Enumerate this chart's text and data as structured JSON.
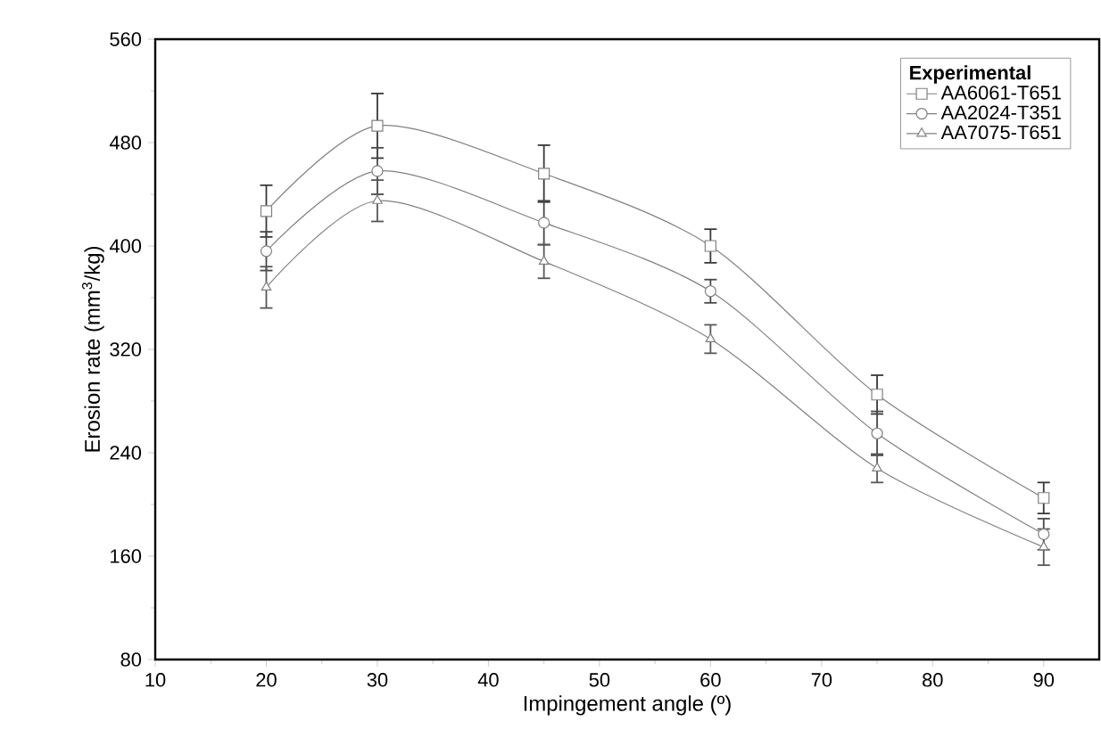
{
  "chart_data": {
    "type": "line",
    "xlabel": "Impingement angle (º)",
    "ylabel": "Erosion rate (mm$^{3}$/kg)",
    "legend_title": "Experimental",
    "x": [
      20,
      30,
      45,
      60,
      75,
      90
    ],
    "series": [
      {
        "name": "AA6061-T651",
        "color": "#808080",
        "marker": "square",
        "values": [
          427,
          493,
          456,
          400,
          285,
          205
        ],
        "errors": [
          20,
          25,
          22,
          13,
          15,
          12
        ]
      },
      {
        "name": "AA2024-T351",
        "color": "#808080",
        "marker": "circle",
        "values": [
          396,
          458,
          418,
          365,
          255,
          177
        ],
        "errors": [
          15,
          18,
          17,
          9,
          17,
          12
        ]
      },
      {
        "name": "AA7075-T651",
        "color": "#808080",
        "marker": "triangle",
        "values": [
          368,
          435,
          388,
          328,
          228,
          167
        ],
        "errors": [
          16,
          16,
          13,
          11,
          11,
          14
        ]
      }
    ],
    "xlim": [
      10,
      95
    ],
    "ylim": [
      80,
      560
    ],
    "xticks": [
      10,
      20,
      30,
      40,
      50,
      60,
      70,
      80,
      90
    ],
    "yticks": [
      80,
      160,
      240,
      320,
      400,
      480,
      560
    ],
    "grid": false,
    "legend": "top right",
    "line_style": "solid"
  }
}
